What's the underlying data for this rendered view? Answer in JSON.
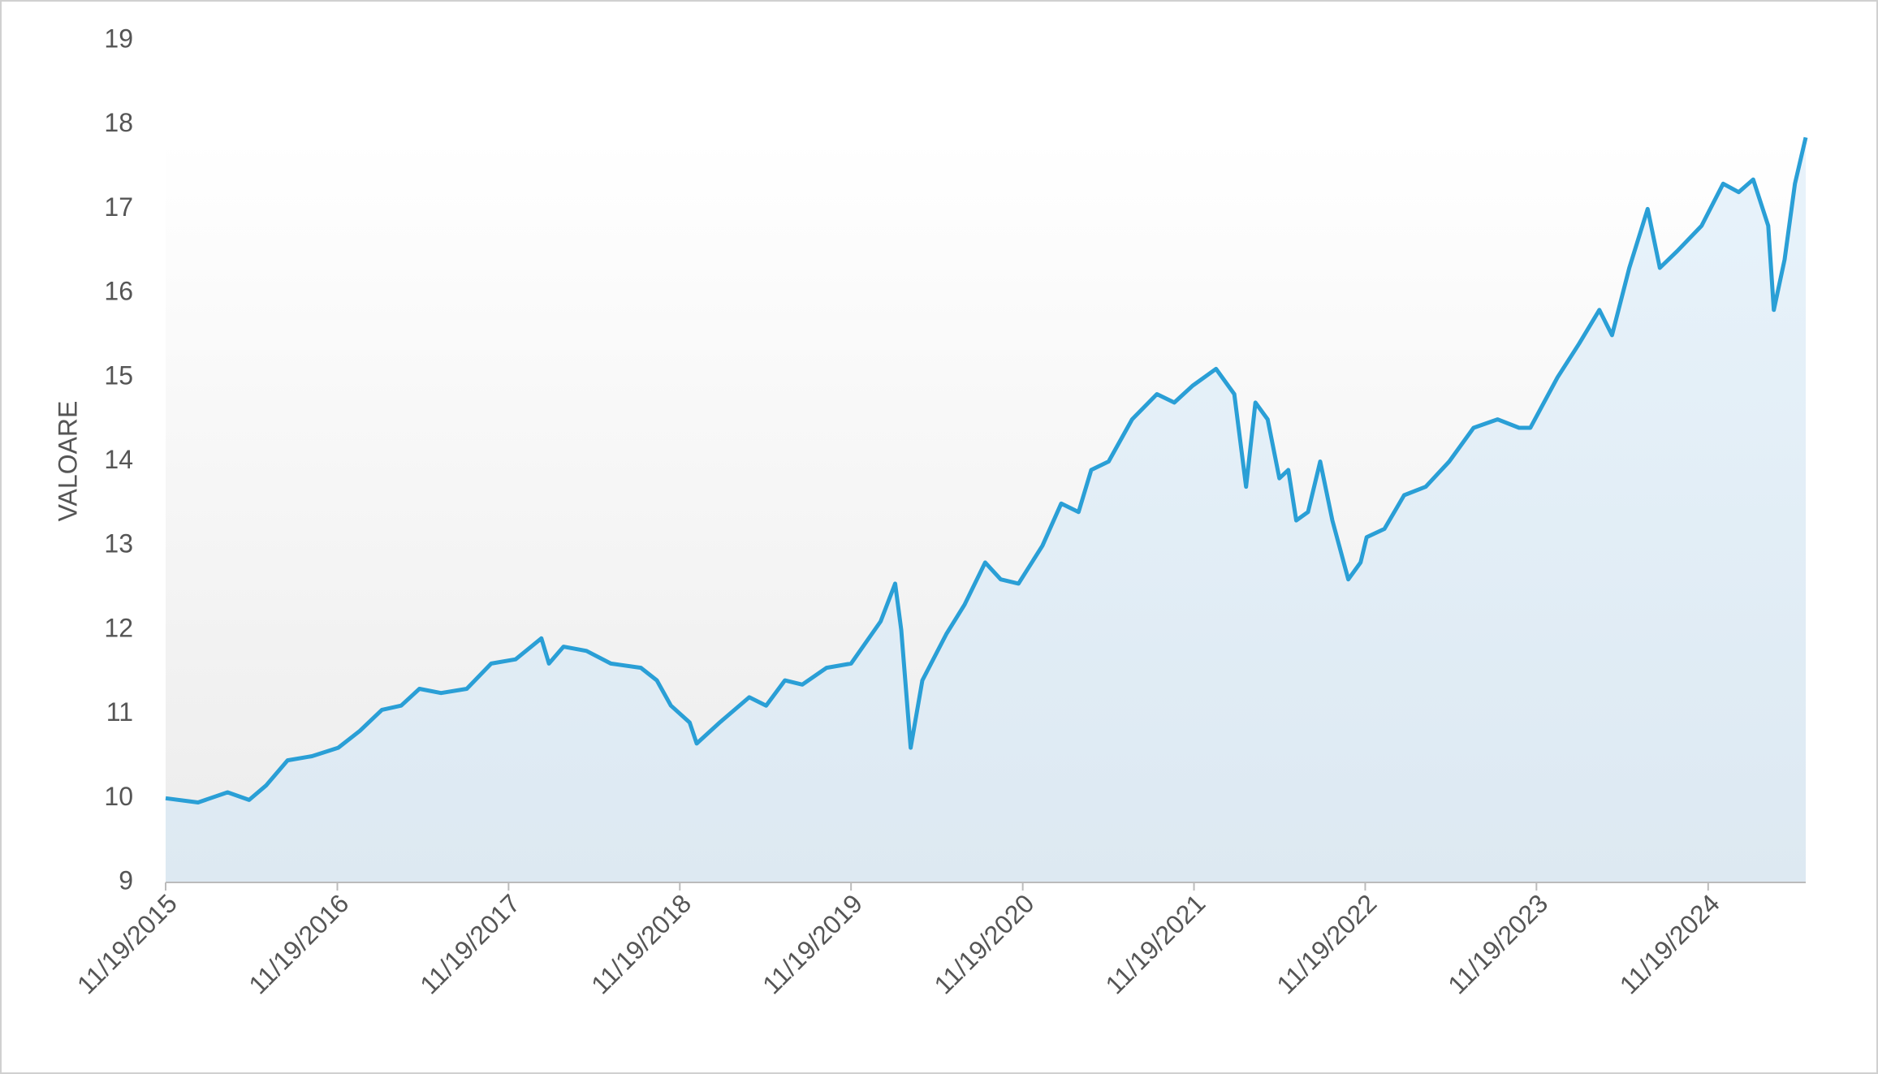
{
  "chart_data": {
    "type": "area",
    "y_label": "VALOARE",
    "color": "#2a9fd6",
    "x": [
      "2015-11-19",
      "2016-01-27",
      "2016-03-30",
      "2016-05-15",
      "2016-06-20",
      "2016-08-05",
      "2016-09-26",
      "2016-11-21",
      "2017-01-06",
      "2017-02-22",
      "2017-04-04",
      "2017-05-13",
      "2017-06-28",
      "2017-08-22",
      "2017-10-13",
      "2017-12-04",
      "2018-01-28",
      "2018-02-13",
      "2018-03-16",
      "2018-05-04",
      "2018-06-25",
      "2018-08-28",
      "2018-10-01",
      "2018-10-31",
      "2018-12-10",
      "2018-12-25",
      "2019-02-12",
      "2019-04-16",
      "2019-05-22",
      "2019-07-01",
      "2019-08-07",
      "2019-09-28",
      "2019-11-19",
      "2020-01-21",
      "2020-02-21",
      "2020-03-05",
      "2020-03-25",
      "2020-04-19",
      "2020-06-09",
      "2020-07-18",
      "2020-08-31",
      "2020-10-03",
      "2020-11-10",
      "2020-12-31",
      "2021-02-09",
      "2021-03-18",
      "2021-04-14",
      "2021-05-21",
      "2021-07-10",
      "2021-09-01",
      "2021-10-08",
      "2021-11-16",
      "2022-01-05",
      "2022-02-13",
      "2022-03-10",
      "2022-03-30",
      "2022-04-25",
      "2022-05-20",
      "2022-06-08",
      "2022-06-25",
      "2022-07-20",
      "2022-08-15",
      "2022-09-10",
      "2022-10-14",
      "2022-11-09",
      "2022-11-22",
      "2022-12-30",
      "2023-02-10",
      "2023-03-28",
      "2023-05-17",
      "2023-07-08",
      "2023-08-28",
      "2023-10-13",
      "2023-11-06",
      "2024-01-03",
      "2024-02-18",
      "2024-04-01",
      "2024-04-28",
      "2024-06-04",
      "2024-07-13",
      "2024-08-08",
      "2024-09-14",
      "2024-11-05",
      "2024-12-21",
      "2025-01-23",
      "2025-02-23",
      "2025-03-27",
      "2025-04-08",
      "2025-05-01",
      "2025-05-23",
      "2025-06-15"
    ],
    "values": [
      10.0,
      9.95,
      10.07,
      9.98,
      10.15,
      10.45,
      10.5,
      10.6,
      10.8,
      11.05,
      11.1,
      11.3,
      11.25,
      11.3,
      11.6,
      11.65,
      11.9,
      11.6,
      11.8,
      11.75,
      11.6,
      11.55,
      11.4,
      11.1,
      10.9,
      10.65,
      10.9,
      11.2,
      11.1,
      11.4,
      11.35,
      11.55,
      11.6,
      12.1,
      12.55,
      12.0,
      10.6,
      11.4,
      11.95,
      12.3,
      12.8,
      12.6,
      12.55,
      13.0,
      13.5,
      13.4,
      13.9,
      14.0,
      14.5,
      14.8,
      14.7,
      14.9,
      15.1,
      14.8,
      13.7,
      14.7,
      14.5,
      13.8,
      13.9,
      13.3,
      13.4,
      14.0,
      13.3,
      12.6,
      12.8,
      13.1,
      13.2,
      13.6,
      13.7,
      14.0,
      14.4,
      14.5,
      14.4,
      14.4,
      15.0,
      15.4,
      15.8,
      15.5,
      16.3,
      17.0,
      16.3,
      16.5,
      16.8,
      17.3,
      17.2,
      17.35,
      16.8,
      15.8,
      16.4,
      17.3,
      17.85
    ],
    "xlim": [
      "2015-11-19",
      "2025-06-15"
    ],
    "xticks": [
      {
        "value": "2015-11-19",
        "label": "11/19/2015"
      },
      {
        "value": "2016-11-19",
        "label": "11/19/2016"
      },
      {
        "value": "2017-11-19",
        "label": "11/19/2017"
      },
      {
        "value": "2018-11-19",
        "label": "11/19/2018"
      },
      {
        "value": "2019-11-19",
        "label": "11/19/2019"
      },
      {
        "value": "2020-11-19",
        "label": "11/19/2020"
      },
      {
        "value": "2021-11-19",
        "label": "11/19/2021"
      },
      {
        "value": "2022-11-19",
        "label": "11/19/2022"
      },
      {
        "value": "2023-11-19",
        "label": "11/19/2023"
      },
      {
        "value": "2024-11-19",
        "label": "11/19/2024"
      }
    ],
    "ylim": [
      9,
      19
    ],
    "yticks": [
      9,
      10,
      11,
      12,
      13,
      14,
      15,
      16,
      17,
      18,
      19
    ]
  }
}
